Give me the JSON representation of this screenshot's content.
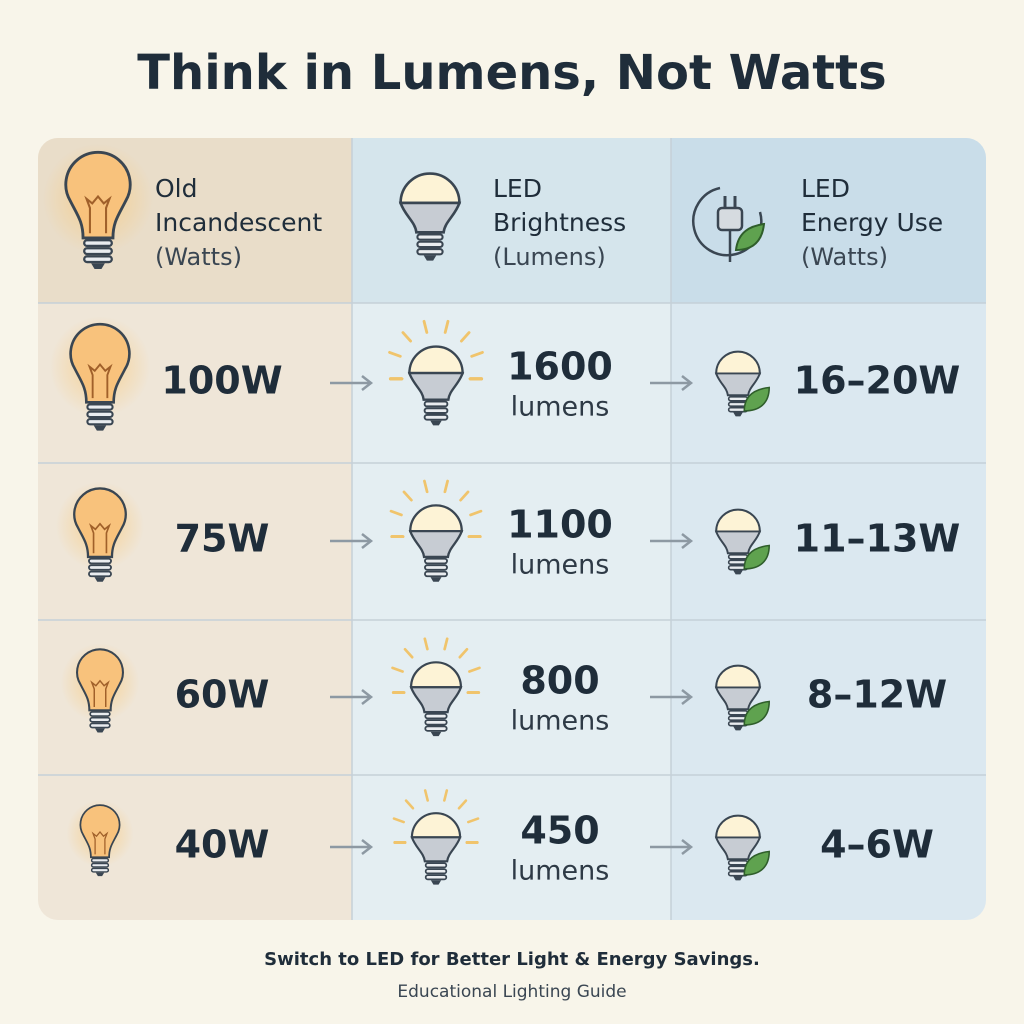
{
  "title": "Think in Lumens, Not Watts",
  "table": {
    "headers": [
      {
        "title_lines": [
          "Old",
          "Incandescent"
        ],
        "unit": "(Watts)"
      },
      {
        "title_lines": [
          "LED",
          "Brightness"
        ],
        "unit": "(Lumens)"
      },
      {
        "title_lines": [
          "LED",
          "Energy Use"
        ],
        "unit": "(Watts)"
      }
    ],
    "rows": [
      {
        "incandescent": "100W",
        "lumens": "1600",
        "lumens_unit": "lumens",
        "led": "16–20W"
      },
      {
        "incandescent": "75W",
        "lumens": "1100",
        "lumens_unit": "lumens",
        "led": "11–13W"
      },
      {
        "incandescent": "60W",
        "lumens": "800",
        "lumens_unit": "lumens",
        "led": "8–12W"
      },
      {
        "incandescent": "40W",
        "lumens": "450",
        "lumens_unit": "lumens",
        "led": "4–6W"
      }
    ]
  },
  "footer": {
    "tagline": "Switch to LED for Better Light & Energy Savings.",
    "subtitle": "Educational Lighting Guide"
  }
}
